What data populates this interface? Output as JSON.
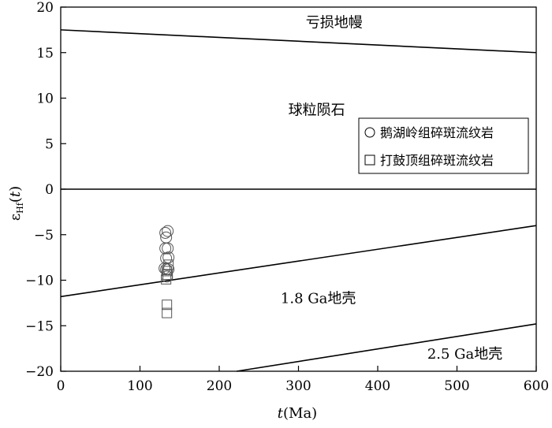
{
  "chart_data": {
    "type": "scatter",
    "title": "",
    "xlabel": {
      "italic": "t",
      "rest": "(Ma)"
    },
    "ylabel": {
      "main": "ε",
      "sub": "Hf",
      "paren_open": "(",
      "italic": "t",
      "paren_close": ")"
    },
    "xlim": [
      0,
      600
    ],
    "ylim": [
      -20,
      20
    ],
    "x_ticks": [
      0,
      100,
      200,
      300,
      400,
      500,
      600
    ],
    "y_ticks": [
      20,
      15,
      10,
      5,
      0,
      -5,
      -10,
      -15,
      -20
    ],
    "y_tick_labels": [
      "20",
      "15",
      "10",
      "5",
      "0",
      "−5",
      "−10",
      "−15",
      "−20"
    ],
    "grid": false,
    "legend_position": "right-middle",
    "reference_lines": [
      {
        "name": "亏损地幔",
        "x": [
          0,
          600
        ],
        "y": [
          17.5,
          15.0
        ]
      },
      {
        "name": "CHUR",
        "x": [
          0,
          600
        ],
        "y": [
          0,
          0
        ]
      },
      {
        "name": "1.8 Ga地壳",
        "x": [
          0,
          600
        ],
        "y": [
          -11.8,
          -4.0
        ]
      },
      {
        "name": "2.5 Ga地壳",
        "x": [
          222,
          600
        ],
        "y": [
          -20,
          -14.8
        ]
      }
    ],
    "region_labels": [
      {
        "text": "亏损地幔",
        "x": 345,
        "y": 17.8
      },
      {
        "text": "球粒陨石",
        "x": 323,
        "y": 8.2
      },
      {
        "text": "1.8 Ga地壳",
        "x": 325,
        "y": -12.5
      },
      {
        "text": "2.5 Ga地壳",
        "x": 510,
        "y": -18.6
      }
    ],
    "series": [
      {
        "name": "鹅湖岭组碎斑流纹岩",
        "marker": "circle",
        "points": [
          {
            "x": 132,
            "y": -4.8
          },
          {
            "x": 135,
            "y": -4.6
          },
          {
            "x": 133,
            "y": -5.3
          },
          {
            "x": 132,
            "y": -6.5
          },
          {
            "x": 135,
            "y": -6.5
          },
          {
            "x": 133,
            "y": -7.6
          },
          {
            "x": 136,
            "y": -7.5
          },
          {
            "x": 131,
            "y": -8.7
          },
          {
            "x": 133,
            "y": -8.8
          },
          {
            "x": 136,
            "y": -8.8
          },
          {
            "x": 134,
            "y": -9.6
          }
        ]
      },
      {
        "name": "打鼓顶组碎斑流纹岩",
        "marker": "square",
        "points": [
          {
            "x": 136,
            "y": -8.3
          },
          {
            "x": 134,
            "y": -9.0
          },
          {
            "x": 135,
            "y": -9.4
          },
          {
            "x": 133,
            "y": -9.9
          },
          {
            "x": 134,
            "y": -12.7
          },
          {
            "x": 134,
            "y": -13.6
          }
        ]
      }
    ]
  }
}
